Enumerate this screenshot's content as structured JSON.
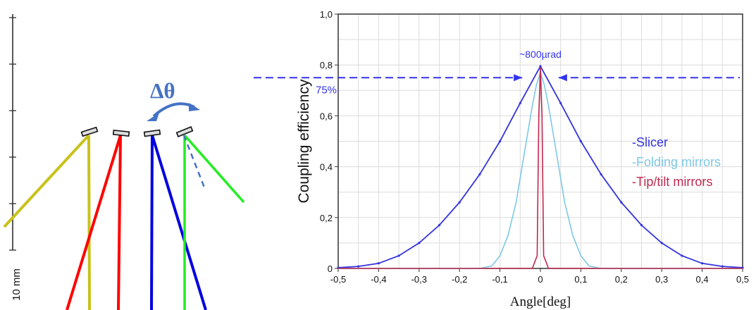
{
  "schematic": {
    "scale_label": "10 mm",
    "delta_label": "Δθ",
    "colors": {
      "yellow": "#c8c21a",
      "red": "#ff0000",
      "blue": "#0000e0",
      "green": "#22ee22",
      "arrow": "#4472c4"
    }
  },
  "chart_data": {
    "type": "line",
    "title": "",
    "xlabel": "Angle[deg]",
    "ylabel": "Coupling efficiency",
    "xlim": [
      -0.5,
      0.5
    ],
    "ylim": [
      0,
      1.0
    ],
    "x_ticks": [
      -0.5,
      -0.4,
      -0.3,
      -0.2,
      -0.1,
      0,
      0.1,
      0.2,
      0.3,
      0.4,
      0.5
    ],
    "x_tick_labels": [
      "-0,5",
      "-0,4",
      "-0,3",
      "-0,2",
      "-0,1",
      "0",
      "0,1",
      "0,2",
      "0,3",
      "0,4",
      "0,5"
    ],
    "y_ticks": [
      0,
      0.2,
      0.4,
      0.6,
      0.8,
      1.0
    ],
    "y_tick_labels": [
      "0",
      "0,2",
      "0,4",
      "0,6",
      "0,8",
      "1,0"
    ],
    "grid": true,
    "legend_position": "right",
    "series": [
      {
        "name": "-Slicer",
        "color": "#3333dd",
        "x": [
          -0.5,
          -0.45,
          -0.4,
          -0.35,
          -0.3,
          -0.25,
          -0.2,
          -0.15,
          -0.1,
          -0.05,
          0,
          0.05,
          0.1,
          0.15,
          0.2,
          0.25,
          0.3,
          0.35,
          0.4,
          0.45,
          0.5
        ],
        "y": [
          0.003,
          0.008,
          0.02,
          0.05,
          0.1,
          0.17,
          0.26,
          0.37,
          0.5,
          0.65,
          0.795,
          0.65,
          0.5,
          0.37,
          0.26,
          0.17,
          0.1,
          0.05,
          0.02,
          0.008,
          0.003
        ]
      },
      {
        "name": "-Folding mirrors",
        "color": "#7ec8e6",
        "x": [
          -0.5,
          -0.15,
          -0.12,
          -0.1,
          -0.08,
          -0.06,
          -0.04,
          -0.02,
          -0.01,
          0,
          0.01,
          0.02,
          0.04,
          0.06,
          0.08,
          0.1,
          0.12,
          0.15,
          0.5
        ],
        "y": [
          0,
          0,
          0.01,
          0.05,
          0.13,
          0.26,
          0.45,
          0.64,
          0.72,
          0.77,
          0.72,
          0.64,
          0.45,
          0.26,
          0.13,
          0.05,
          0.01,
          0,
          0
        ]
      },
      {
        "name": "-Tip/tilt mirrors",
        "color": "#c0284e",
        "x": [
          -0.5,
          -0.02,
          -0.008,
          -0.004,
          0,
          0.004,
          0.008,
          0.02,
          0.5
        ],
        "y": [
          0,
          0,
          0.05,
          0.6,
          0.79,
          0.6,
          0.05,
          0,
          0
        ]
      }
    ],
    "annotations": {
      "fwhm_label": "~800µrad",
      "threshold_label": "75%",
      "threshold_value": 0.75,
      "arrow_tip_x": [
        -0.045,
        0.045
      ]
    }
  }
}
